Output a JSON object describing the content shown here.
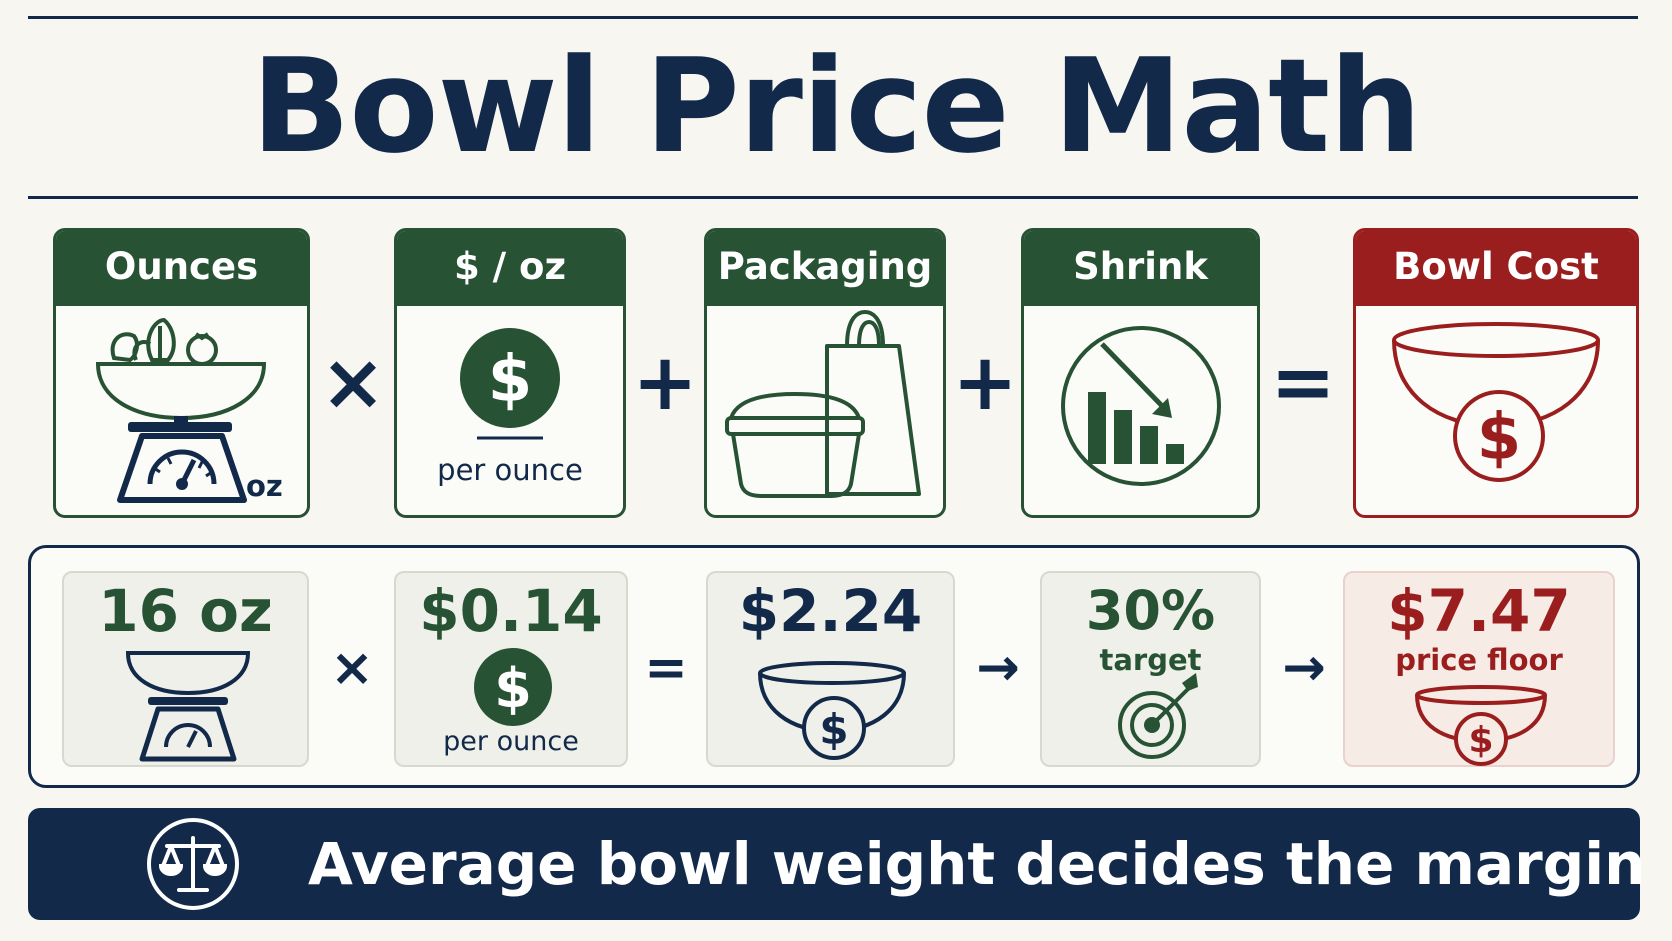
{
  "title": "Bowl Price Math",
  "formula": {
    "cards": [
      {
        "header": "Ounces",
        "caption": "oz",
        "icon": "scale-with-salad-bowl-icon"
      },
      {
        "header": "$ / oz",
        "caption": "per ounce",
        "icon": "dollar-coin-icon"
      },
      {
        "header": "Packaging",
        "icon": "takeout-container-and-bag-icon"
      },
      {
        "header": "Shrink",
        "icon": "declining-bar-chart-icon"
      },
      {
        "header": "Bowl Cost",
        "icon": "bowl-with-dollar-icon"
      }
    ],
    "operators": [
      "×",
      "+",
      "+",
      "="
    ]
  },
  "example": {
    "ounces": "16 oz",
    "price_per_oz": "$0.14",
    "price_per_oz_caption": "per ounce",
    "bowl_cost": "$2.24",
    "target_pct": "30%",
    "target_caption": "target",
    "price_floor": "$7.47",
    "price_floor_caption": "price floor",
    "operators": [
      "×",
      "=",
      "→",
      "→"
    ]
  },
  "banner": {
    "text": "Average bowl weight decides the margin",
    "icon": "balance-scale-icon"
  },
  "colors": {
    "navy": "#12294a",
    "green": "#275233",
    "red": "#9b1e1e"
  }
}
